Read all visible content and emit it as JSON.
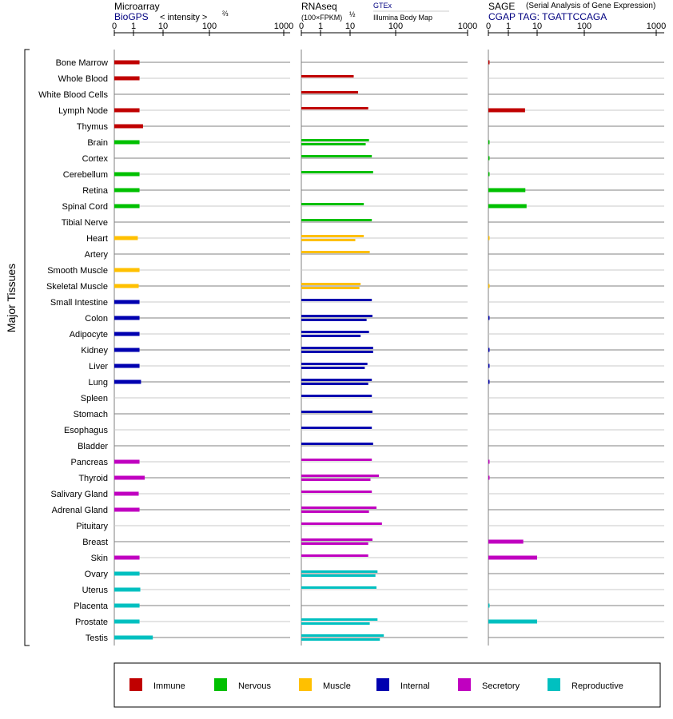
{
  "chart_data": {
    "type": "bar",
    "y_axis_label": "Major Tissues",
    "tick_labels": [
      "0",
      "1",
      "10",
      "100",
      "1000"
    ],
    "tick_values": [
      0,
      1,
      10,
      100,
      1000
    ],
    "tissues": [
      {
        "name": "Bone Marrow",
        "group": "Immune"
      },
      {
        "name": "Whole Blood",
        "group": "Immune"
      },
      {
        "name": "White Blood Cells",
        "group": "Immune"
      },
      {
        "name": "Lymph Node",
        "group": "Immune"
      },
      {
        "name": "Thymus",
        "group": "Immune"
      },
      {
        "name": "Brain",
        "group": "Nervous"
      },
      {
        "name": "Cortex",
        "group": "Nervous"
      },
      {
        "name": "Cerebellum",
        "group": "Nervous"
      },
      {
        "name": "Retina",
        "group": "Nervous"
      },
      {
        "name": "Spinal Cord",
        "group": "Nervous"
      },
      {
        "name": "Tibial Nerve",
        "group": "Nervous"
      },
      {
        "name": "Heart",
        "group": "Muscle"
      },
      {
        "name": "Artery",
        "group": "Muscle"
      },
      {
        "name": "Smooth Muscle",
        "group": "Muscle"
      },
      {
        "name": "Skeletal Muscle",
        "group": "Muscle"
      },
      {
        "name": "Small Intestine",
        "group": "Internal"
      },
      {
        "name": "Colon",
        "group": "Internal"
      },
      {
        "name": "Adipocyte",
        "group": "Internal"
      },
      {
        "name": "Kidney",
        "group": "Internal"
      },
      {
        "name": "Liver",
        "group": "Internal"
      },
      {
        "name": "Lung",
        "group": "Internal"
      },
      {
        "name": "Spleen",
        "group": "Internal"
      },
      {
        "name": "Stomach",
        "group": "Internal"
      },
      {
        "name": "Esophagus",
        "group": "Internal"
      },
      {
        "name": "Bladder",
        "group": "Internal"
      },
      {
        "name": "Pancreas",
        "group": "Secretory"
      },
      {
        "name": "Thyroid",
        "group": "Secretory"
      },
      {
        "name": "Salivary Gland",
        "group": "Secretory"
      },
      {
        "name": "Adrenal Gland",
        "group": "Secretory"
      },
      {
        "name": "Pituitary",
        "group": "Secretory"
      },
      {
        "name": "Breast",
        "group": "Secretory"
      },
      {
        "name": "Skin",
        "group": "Secretory"
      },
      {
        "name": "Ovary",
        "group": "Reproductive"
      },
      {
        "name": "Uterus",
        "group": "Reproductive"
      },
      {
        "name": "Placenta",
        "group": "Reproductive"
      },
      {
        "name": "Prostate",
        "group": "Reproductive"
      },
      {
        "name": "Testis",
        "group": "Reproductive"
      }
    ],
    "groups": [
      {
        "name": "Immune",
        "color": "#c00000"
      },
      {
        "name": "Nervous",
        "color": "#00c000"
      },
      {
        "name": "Muscle",
        "color": "#ffc000"
      },
      {
        "name": "Internal",
        "color": "#0000b0"
      },
      {
        "name": "Secretory",
        "color": "#c000c0"
      },
      {
        "name": "Reproductive",
        "color": "#00c0c0"
      }
    ],
    "panels": [
      {
        "title": "Microarray",
        "subtitle": "BioGPS",
        "scale_note": "< intensity >",
        "scale_exp": "⅔",
        "sources": [],
        "values": [
          [
            1.6
          ],
          [
            1.6
          ],
          [
            null
          ],
          [
            1.6
          ],
          [
            2.1
          ],
          [
            1.6
          ],
          [
            null
          ],
          [
            1.6
          ],
          [
            1.6
          ],
          [
            1.6
          ],
          [
            null
          ],
          [
            1.4
          ],
          [
            null
          ],
          [
            1.6
          ],
          [
            1.5
          ],
          [
            1.6
          ],
          [
            1.6
          ],
          [
            1.6
          ],
          [
            1.6
          ],
          [
            1.6
          ],
          [
            1.8
          ],
          [
            null
          ],
          [
            null
          ],
          [
            null
          ],
          [
            null
          ],
          [
            1.6
          ],
          [
            2.4
          ],
          [
            1.5
          ],
          [
            1.6
          ],
          [
            null
          ],
          [
            null
          ],
          [
            1.6
          ],
          [
            1.6
          ],
          [
            1.7
          ],
          [
            1.6
          ],
          [
            1.6
          ],
          [
            4.5
          ]
        ]
      },
      {
        "title": "RNAseq",
        "subtitle": "(100×FPKM)",
        "scale_note": "",
        "scale_exp": "½",
        "sources": [
          "GTEx",
          "Illumina Body Map"
        ],
        "values": [
          [
            null,
            null
          ],
          [
            12,
            null
          ],
          [
            15,
            null
          ],
          [
            25,
            null
          ],
          [
            null,
            null
          ],
          [
            26,
            22
          ],
          [
            30,
            null
          ],
          [
            32,
            null
          ],
          [
            null,
            null
          ],
          [
            20,
            null
          ],
          [
            30,
            null
          ],
          [
            20,
            13
          ],
          [
            27,
            null
          ],
          [
            null,
            null
          ],
          [
            17,
            16
          ],
          [
            30,
            null
          ],
          [
            31,
            23
          ],
          [
            26,
            17
          ],
          [
            32,
            32
          ],
          [
            24,
            21
          ],
          [
            30,
            25
          ],
          [
            30,
            null
          ],
          [
            31,
            null
          ],
          [
            30,
            null
          ],
          [
            32,
            null
          ],
          [
            30,
            null
          ],
          [
            43,
            28
          ],
          [
            30,
            null
          ],
          [
            38,
            26
          ],
          [
            50,
            null
          ],
          [
            31,
            25
          ],
          [
            25,
            null
          ],
          [
            40,
            36
          ],
          [
            38,
            null
          ],
          [
            null,
            null
          ],
          [
            40,
            27
          ],
          [
            55,
            45
          ]
        ]
      },
      {
        "title": "SAGE",
        "subtitle": "CGAP TAG: TGATTCCAGA",
        "scale_note": "(Serial Analysis of Gene Expression)",
        "scale_exp": "",
        "sources": [],
        "values": [
          [
            0.05
          ],
          [
            null
          ],
          [
            null
          ],
          [
            3.8
          ],
          [
            null
          ],
          [
            0.02
          ],
          [
            0.02
          ],
          [
            0.02
          ],
          [
            3.9
          ],
          [
            4.3
          ],
          [
            null
          ],
          [
            0.01
          ],
          [
            null
          ],
          [
            null
          ],
          [
            0.01
          ],
          [
            null
          ],
          [
            0.05
          ],
          [
            null
          ],
          [
            0.05
          ],
          [
            0.05
          ],
          [
            0.05
          ],
          [
            null
          ],
          [
            null
          ],
          [
            null
          ],
          [
            null
          ],
          [
            0.05
          ],
          [
            0.05
          ],
          [
            null
          ],
          [
            null
          ],
          [
            null
          ],
          [
            3.3
          ],
          [
            10
          ],
          [
            null
          ],
          [
            null
          ],
          [
            0.02
          ],
          [
            10
          ],
          [
            null
          ]
        ]
      }
    ]
  }
}
